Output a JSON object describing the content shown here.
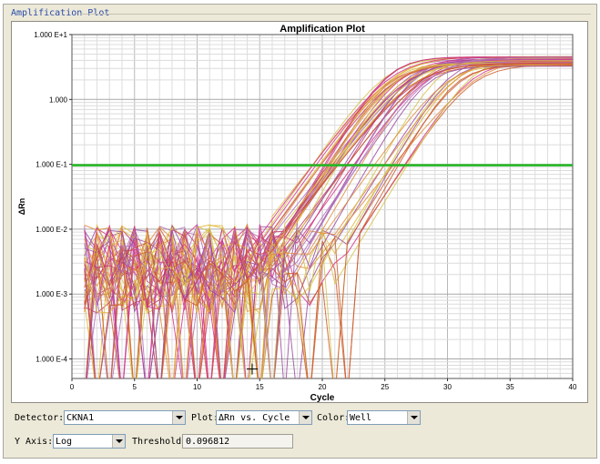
{
  "window": {
    "title": "Amplification Plot"
  },
  "chart_data": {
    "type": "line",
    "title": "Amplification Plot",
    "xlabel": "Cycle",
    "ylabel": "ΔRn",
    "x_ticks": [
      0,
      5,
      10,
      15,
      20,
      25,
      30,
      35,
      40
    ],
    "x_tick_labels": [
      "0",
      "5",
      "10",
      "15",
      "20",
      "25",
      "30",
      "35",
      "40"
    ],
    "y_ticks": [
      10,
      1,
      0.1,
      0.01,
      0.001,
      0.0001
    ],
    "y_tick_labels": [
      "1.000 E+1",
      "1.000",
      "1.000 E-1",
      "1.000 E-2",
      "1.000 E-3",
      "1.000 E-4"
    ],
    "xlim": [
      0,
      40
    ],
    "ylim": [
      5e-05,
      10
    ],
    "log_y": true,
    "grid": true,
    "threshold": 0.096812,
    "threshold_color": "#22b822",
    "series_count": 48,
    "series_colors": [
      "#d6338a",
      "#e0b838",
      "#9a4aa0",
      "#e08c3a",
      "#c23a6a",
      "#d4c24a",
      "#b06fb8",
      "#cc5a2c"
    ],
    "ct_range": [
      19,
      27
    ],
    "plateau_range": [
      3.2,
      4.6
    ],
    "baseline_range": [
      0.0005,
      0.012
    ]
  },
  "controls": {
    "detector_label": "Detector:",
    "detector_value": "CKNA1",
    "plot_label": "Plot:",
    "plot_value": "ΔRn vs. Cycle",
    "color_label": "Color:",
    "color_value": "Well",
    "yaxis_label": "Y Axis:",
    "yaxis_value": "Log",
    "threshold_label": "Threshold:",
    "threshold_value": "0.096812"
  }
}
